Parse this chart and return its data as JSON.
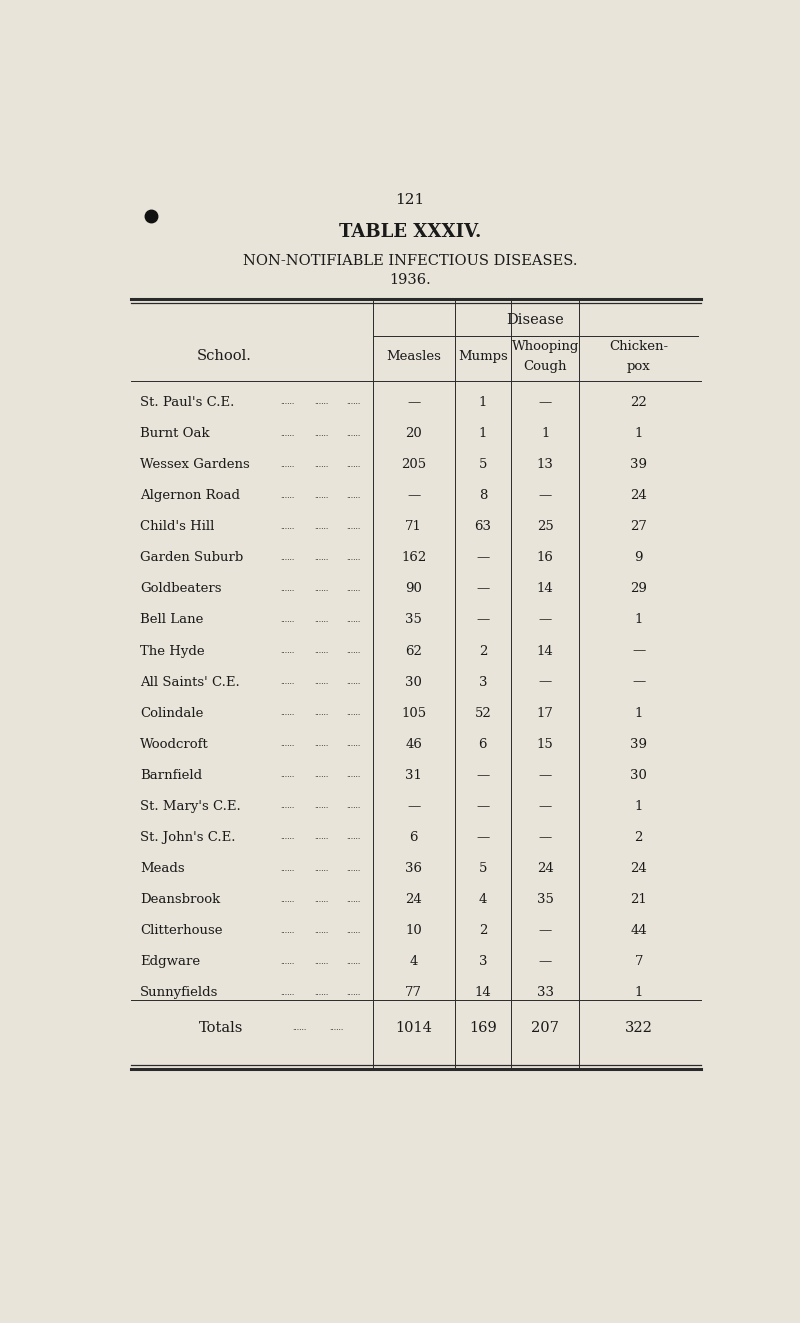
{
  "page_number": "121",
  "table_title": "TABLE XXXIV.",
  "subtitle1": "NON-NOTIFIABLE INFECTIOUS DISEASES.",
  "subtitle2": "1936.",
  "disease_header": "Disease",
  "col_school": "School.",
  "col_measles": "Measles",
  "col_mumps": "Mumps",
  "col_whooping": "Whooping\nCough",
  "col_chicken": "Chicken-\npox",
  "schools": [
    "St. Paul's C.E.",
    "Burnt Oak",
    "Wessex Gardens",
    "Algernon Road",
    "Child's Hill",
    "Garden Suburb",
    "Goldbeaters",
    "Bell Lane",
    "The Hyde",
    "All Saints' C.E.",
    "Colindale",
    "Woodcroft",
    "Barnfield",
    "St. Mary's C.E.",
    "St. John's C.E.",
    "Meads",
    "Deansbrook",
    "Clitterhouse",
    "Edgware",
    "Sunnyfields"
  ],
  "measles": [
    "—",
    "20",
    "205",
    "—",
    "71",
    "162",
    "90",
    "35",
    "62",
    "30",
    "105",
    "46",
    "31",
    "—",
    "6",
    "36",
    "24",
    "10",
    "4",
    "77"
  ],
  "mumps": [
    "1",
    "1",
    "5",
    "8",
    "63",
    "—",
    "—",
    "—",
    "2",
    "3",
    "52",
    "6",
    "—",
    "—",
    "—",
    "5",
    "4",
    "2",
    "3",
    "14"
  ],
  "whooping": [
    "—",
    "1",
    "13",
    "—",
    "25",
    "16",
    "14",
    "—",
    "14",
    "—",
    "17",
    "15",
    "—",
    "—",
    "—",
    "24",
    "35",
    "—",
    "—",
    "33"
  ],
  "chicken": [
    "22",
    "1",
    "39",
    "24",
    "27",
    "9",
    "29",
    "1",
    "—",
    "—",
    "1",
    "39",
    "30",
    "1",
    "2",
    "24",
    "21",
    "44",
    "7",
    "1"
  ],
  "totals_label": "Totals",
  "total_measles": "1014",
  "total_mumps": "169",
  "total_whooping": "207",
  "total_chicken": "322",
  "bg_color": "#e8e4da",
  "text_color": "#1a1a1a",
  "line_color": "#2a2a2a",
  "dots": "......"
}
